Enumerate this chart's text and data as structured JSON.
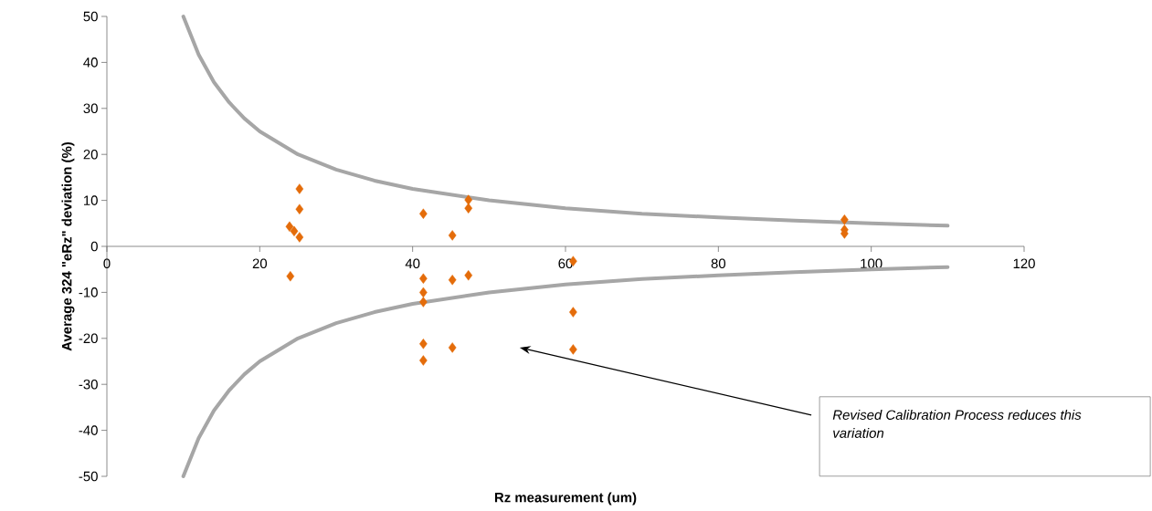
{
  "chart_data": {
    "type": "scatter",
    "xlabel": "Rz measurement (um)",
    "ylabel": "Average 324 \"eRz\" deviation (%)",
    "xlim": [
      0,
      120
    ],
    "ylim": [
      -50,
      50
    ],
    "xticks": [
      0,
      20,
      40,
      60,
      80,
      100,
      120
    ],
    "yticks": [
      -50,
      -40,
      -30,
      -20,
      -10,
      0,
      10,
      20,
      30,
      40,
      50
    ],
    "marker": "diamond",
    "series": [
      {
        "type": "scatter",
        "color": "#e46c0a",
        "x": [
          23.9,
          25.2,
          25.2,
          25.2,
          24.5,
          24.0,
          41.4,
          41.4,
          41.4,
          41.4,
          41.4,
          41.4,
          45.2,
          45.2,
          45.2,
          47.3,
          47.3,
          47.3,
          61.0,
          61.0,
          61.0,
          96.5,
          96.5,
          96.5
        ],
        "values": [
          4.3,
          12.5,
          8.1,
          2.0,
          3.3,
          -6.5,
          7.1,
          -7.0,
          -10.0,
          -12.1,
          -21.2,
          -24.8,
          2.4,
          -7.3,
          -22.0,
          10.1,
          8.3,
          -6.3,
          -3.2,
          -14.3,
          -22.4,
          5.8,
          3.6,
          2.8
        ]
      },
      {
        "type": "line",
        "color": "#a6a6a6",
        "marker": "none",
        "x": [
          10,
          12,
          14,
          16,
          18,
          20,
          25,
          30,
          35,
          40,
          50,
          60,
          70,
          80,
          90,
          100,
          110
        ],
        "values": [
          50,
          41.7,
          35.7,
          31.3,
          27.8,
          25,
          20,
          16.7,
          14.3,
          12.5,
          10,
          8.3,
          7.1,
          6.3,
          5.6,
          5,
          4.5
        ]
      },
      {
        "type": "line",
        "color": "#a6a6a6",
        "marker": "none",
        "x": [
          10,
          12,
          14,
          16,
          18,
          20,
          25,
          30,
          35,
          40,
          50,
          60,
          70,
          80,
          90,
          100,
          110
        ],
        "values": [
          -50,
          -41.7,
          -35.7,
          -31.3,
          -27.8,
          -25,
          -20,
          -16.7,
          -14.3,
          -12.5,
          -10,
          -8.3,
          -7.1,
          -6.3,
          -5.6,
          -5,
          -4.5
        ]
      }
    ],
    "annotations": [
      "Revised Calibration Process reduces this variation"
    ]
  }
}
